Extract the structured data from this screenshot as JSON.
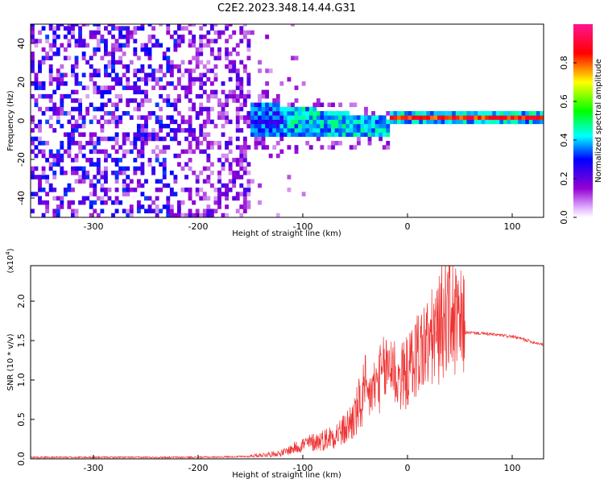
{
  "chart_data": [
    {
      "type": "heatmap",
      "title": "C2E2.2023.348.14.44.G31",
      "xlabel": "Height of straight line (km)",
      "ylabel": "Frequency (Hz)",
      "xlim": [
        -360,
        130
      ],
      "ylim": [
        -50,
        50
      ],
      "xticks": [
        -300,
        -200,
        -100,
        0,
        100
      ],
      "yticks": [
        -40,
        -20,
        0,
        20,
        40
      ],
      "colorbar": {
        "label": "Normalized spectral amplitude",
        "range": [
          0,
          1
        ],
        "ticks": [
          "0.0",
          "0.2",
          "0.4",
          "0.6",
          "0.8"
        ],
        "colormap": [
          "#ffffff",
          "#9400d3",
          "#0000ff",
          "#00ffff",
          "#00ff00",
          "#ffff00",
          "#ff0000",
          "#ff1493"
        ]
      },
      "description_of_signal": {
        "noise_region_x": [
          -360,
          -150
        ],
        "diffuse_band_x": [
          -220,
          -30
        ],
        "strong_carrier_x": [
          -20,
          130
        ],
        "carrier_frequency": 1
      }
    },
    {
      "type": "line",
      "title": "",
      "xlabel": "Height of straight line (km)",
      "ylabel": "SNR (10 * v/v)",
      "yscale_label": "(x10",
      "yscale_exp": "4",
      "yscale_close": ")",
      "xlim": [
        -360,
        130
      ],
      "ylim": [
        0,
        2.45
      ],
      "xticks": [
        -300,
        -200,
        -100,
        0,
        100
      ],
      "yticks": [
        "0.0",
        "0.5",
        "1.0",
        "1.5",
        "2.0"
      ],
      "ytick_values": [
        0,
        0.5,
        1.0,
        1.5,
        2.0
      ],
      "series": [
        {
          "color": "#ee3333",
          "envelope_x": [
            -360,
            -250,
            -200,
            -150,
            -120,
            -100,
            -80,
            -60,
            -50,
            -40,
            -30,
            -20,
            -15,
            -10,
            0,
            10,
            20,
            30,
            35,
            40,
            45,
            50,
            55,
            60,
            80,
            100,
            110,
            120,
            130
          ],
          "envelope_y": [
            0.02,
            0.02,
            0.02,
            0.03,
            0.06,
            0.15,
            0.2,
            0.3,
            0.45,
            0.7,
            0.9,
            1.1,
            1.2,
            0.95,
            1.05,
            1.3,
            1.4,
            1.55,
            1.75,
            1.85,
            1.65,
            1.6,
            1.6,
            1.6,
            1.58,
            1.55,
            1.52,
            1.48,
            1.45
          ]
        }
      ]
    }
  ]
}
